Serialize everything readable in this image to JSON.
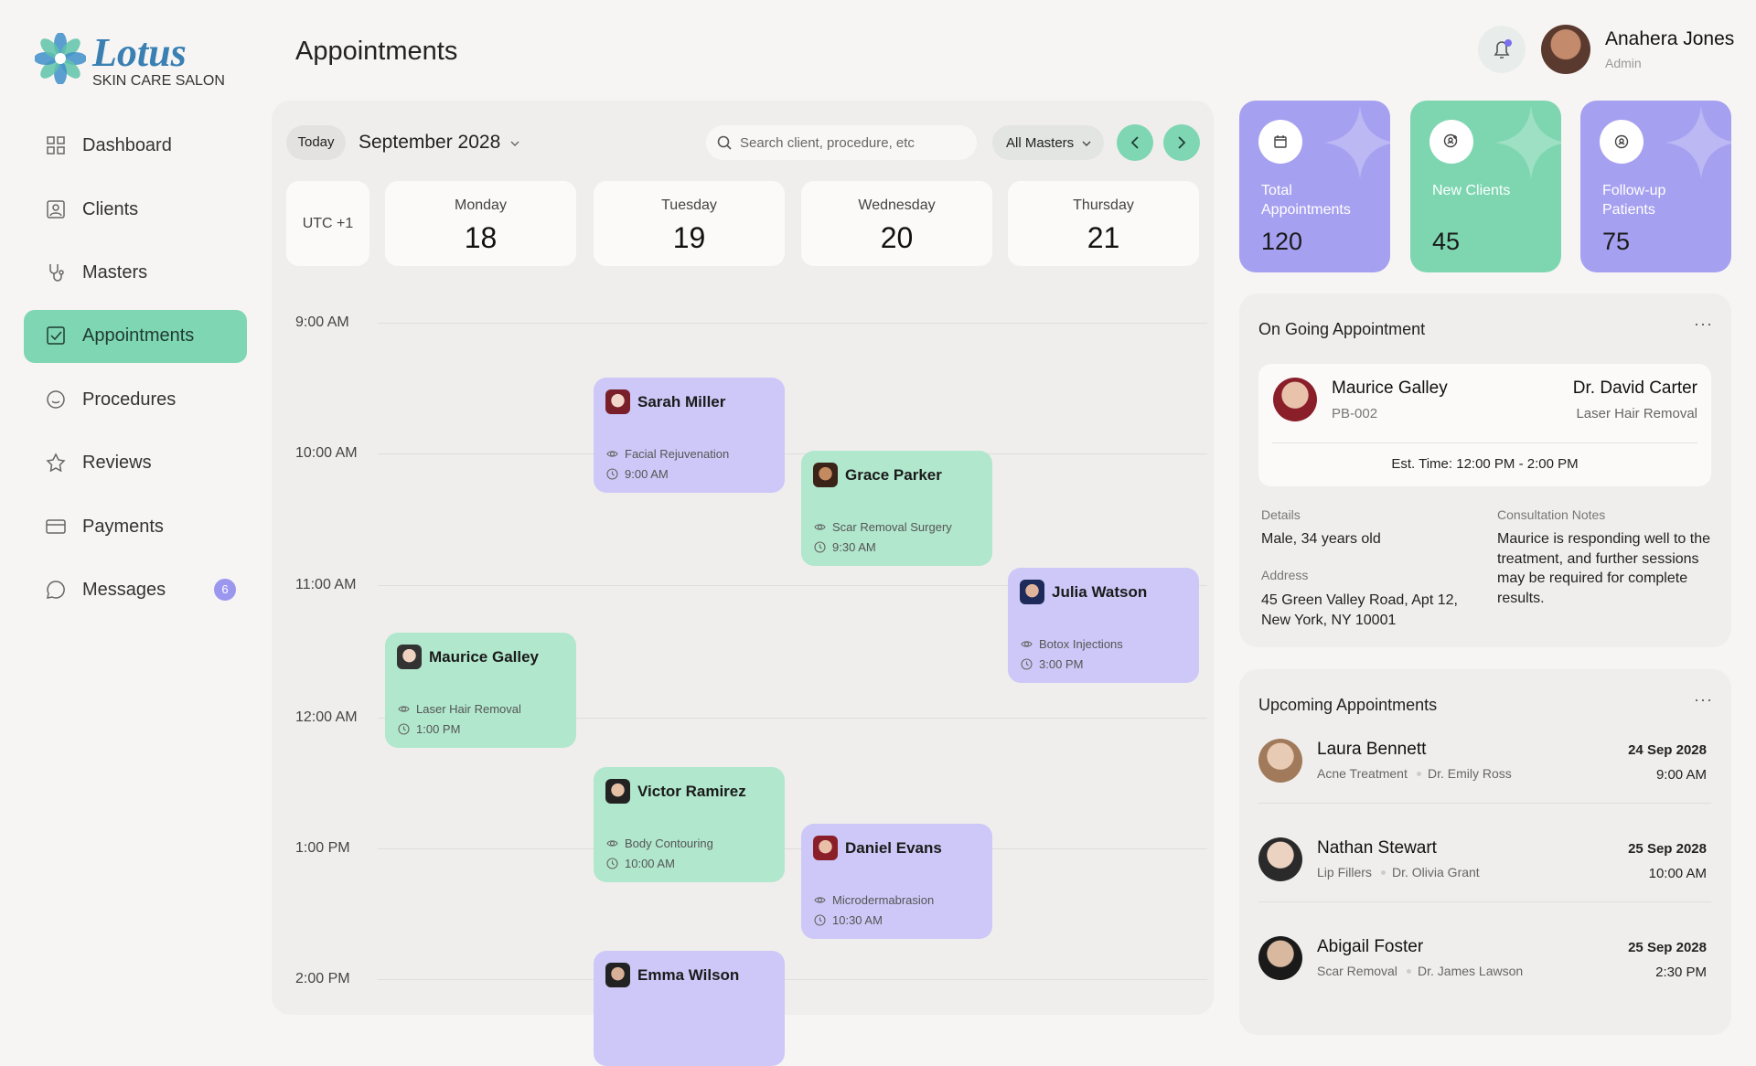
{
  "sidebar": {
    "brand": "Lotus",
    "tagline": "SKIN CARE SALON",
    "nav": [
      "Dashboard",
      "Clients",
      "Masters",
      "Appointments",
      "Procedures",
      "Reviews",
      "Payments",
      "Messages"
    ],
    "messages_badge": 6
  },
  "header": {
    "title": "Appointments",
    "user": {
      "name": "Anahera Jones",
      "role": "Admin"
    }
  },
  "calendar": {
    "today_button": "Today",
    "month": "September 2028",
    "search_placeholder": "Search client, procedure, etc",
    "filter": "All Masters",
    "timezone": "UTC +1",
    "days": [
      {
        "name": "Monday",
        "date": 18
      },
      {
        "name": "Tuesday",
        "date": 19
      },
      {
        "name": "Wednesday",
        "date": 20
      },
      {
        "name": "Thursday",
        "date": 21
      }
    ],
    "times": [
      "9:00 AM",
      "10:00 AM",
      "11:00 AM",
      "12:00 AM",
      "1:00 PM",
      "2:00 PM"
    ],
    "appointments": [
      {
        "client": "Sarah Miller",
        "procedure": "Facial Rejuvenation",
        "time": "9:00 AM"
      },
      {
        "client": "Grace Parker",
        "procedure": "Scar Removal Surgery",
        "time": "9:30 AM"
      },
      {
        "client": "Julia Watson",
        "procedure": "Botox Injections",
        "time": "3:00 PM"
      },
      {
        "client": "Maurice Galley",
        "procedure": "Laser Hair Removal",
        "time": "1:00 PM"
      },
      {
        "client": "Victor Ramirez",
        "procedure": "Body Contouring",
        "time": "10:00 AM"
      },
      {
        "client": "Daniel Evans",
        "procedure": "Microdermabrasion",
        "time": "10:30 AM"
      },
      {
        "client": "Emma Wilson",
        "procedure": "",
        "time": ""
      }
    ]
  },
  "stats": [
    {
      "label": "Total Appointments",
      "value": 120
    },
    {
      "label": "New Clients",
      "value": 45
    },
    {
      "label": "Follow-up Patients",
      "value": 75
    }
  ],
  "ongoing": {
    "title": "On Going Appointment",
    "client": "Maurice Galley",
    "id": "PB-002",
    "doctor": "Dr. David Carter",
    "procedure": "Laser Hair Removal",
    "est_time": "Est. Time: 12:00 PM - 2:00 PM",
    "details_label": "Details",
    "details": "Male, 34 years old",
    "address_label": "Address",
    "address": "45 Green Valley Road, Apt 12, New York, NY 10001",
    "notes_label": "Consultation Notes",
    "notes": "Maurice is responding well to the treatment, and further sessions may be required for complete results."
  },
  "upcoming": {
    "title": "Upcoming Appointments",
    "items": [
      {
        "name": "Laura Bennett",
        "procedure": "Acne Treatment",
        "doctor": "Dr. Emily Ross",
        "date": "24 Sep 2028",
        "time": "9:00 AM"
      },
      {
        "name": "Nathan Stewart",
        "procedure": "Lip Fillers",
        "doctor": "Dr. Olivia Grant",
        "date": "25 Sep 2028",
        "time": "10:00 AM"
      },
      {
        "name": "Abigail Foster",
        "procedure": "Scar Removal",
        "doctor": "Dr. James Lawson",
        "date": "25 Sep 2028",
        "time": "2:30 PM"
      }
    ]
  }
}
